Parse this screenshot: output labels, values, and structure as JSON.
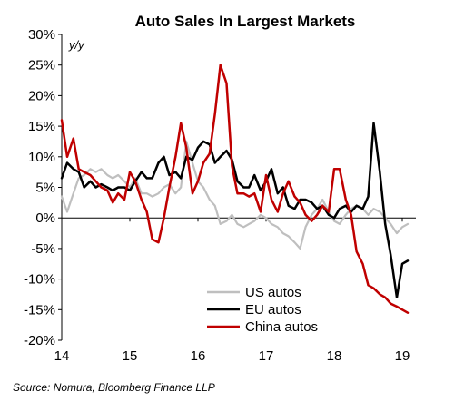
{
  "chart_data": {
    "type": "line",
    "title": "Auto Sales In Largest Markets",
    "unit_label": "y/y",
    "source": "Source: Nomura, Bloomberg Finance LLP",
    "ylim": [
      -20,
      30
    ],
    "y_ticks": [
      30,
      25,
      20,
      15,
      10,
      5,
      0,
      -5,
      -10,
      -15,
      -20
    ],
    "y_tick_labels": [
      "30%",
      "25%",
      "20%",
      "15%",
      "10%",
      "5%",
      "0%",
      "-5%",
      "-10%",
      "-15%",
      "-20%"
    ],
    "xlim": [
      2014,
      2019.2
    ],
    "x_ticks": [
      2014,
      2015,
      2016,
      2017,
      2018,
      2019
    ],
    "x_tick_labels": [
      "14",
      "15",
      "16",
      "17",
      "18",
      "19"
    ],
    "grid": false,
    "legend_position": "bottom-right",
    "series": [
      {
        "name": "US autos",
        "color": "#bfbfbf",
        "x": [
          2014.0,
          2014.08,
          2014.17,
          2014.25,
          2014.33,
          2014.42,
          2014.5,
          2014.58,
          2014.67,
          2014.75,
          2014.83,
          2014.92,
          2015.0,
          2015.08,
          2015.17,
          2015.25,
          2015.33,
          2015.42,
          2015.5,
          2015.58,
          2015.67,
          2015.75,
          2015.83,
          2015.92,
          2016.0,
          2016.08,
          2016.17,
          2016.25,
          2016.33,
          2016.42,
          2016.5,
          2016.58,
          2016.67,
          2016.75,
          2016.83,
          2016.92,
          2017.0,
          2017.08,
          2017.17,
          2017.25,
          2017.33,
          2017.42,
          2017.5,
          2017.58,
          2017.67,
          2017.75,
          2017.83,
          2017.92,
          2018.0,
          2018.08,
          2018.17,
          2018.25,
          2018.33,
          2018.42,
          2018.5,
          2018.58,
          2018.67,
          2018.75,
          2018.83,
          2018.92,
          2019.0,
          2019.08
        ],
        "values": [
          3.5,
          1,
          4,
          6.5,
          7,
          8,
          7.5,
          8,
          7,
          6.5,
          7,
          6,
          5,
          6.5,
          4,
          4,
          3.5,
          4,
          5,
          5.5,
          4,
          5,
          12.5,
          9,
          6,
          5,
          3,
          2,
          -1,
          -0.5,
          0.5,
          -1,
          -1.5,
          -1,
          -0.5,
          0.5,
          0,
          -1,
          -1.5,
          -2.5,
          -3,
          -4,
          -5,
          -1.5,
          0.5,
          1.5,
          3,
          1,
          -0.5,
          -1,
          0.5,
          1.5,
          2,
          1.5,
          0.5,
          1.5,
          1,
          0,
          -1,
          -2.5,
          -1.5,
          -1
        ]
      },
      {
        "name": "EU autos",
        "color": "#000000",
        "x": [
          2014.0,
          2014.08,
          2014.17,
          2014.25,
          2014.33,
          2014.42,
          2014.5,
          2014.58,
          2014.67,
          2014.75,
          2014.83,
          2014.92,
          2015.0,
          2015.08,
          2015.17,
          2015.25,
          2015.33,
          2015.42,
          2015.5,
          2015.58,
          2015.67,
          2015.75,
          2015.83,
          2015.92,
          2016.0,
          2016.08,
          2016.17,
          2016.25,
          2016.33,
          2016.42,
          2016.5,
          2016.58,
          2016.67,
          2016.75,
          2016.83,
          2016.92,
          2017.0,
          2017.08,
          2017.17,
          2017.25,
          2017.33,
          2017.42,
          2017.5,
          2017.58,
          2017.67,
          2017.75,
          2017.83,
          2017.92,
          2018.0,
          2018.08,
          2018.17,
          2018.25,
          2018.33,
          2018.42,
          2018.5,
          2018.58,
          2018.67,
          2018.75,
          2018.83,
          2018.92,
          2019.0,
          2019.08
        ],
        "values": [
          6.5,
          9,
          8,
          7.5,
          5,
          6,
          5,
          5.5,
          5,
          4.5,
          5,
          5,
          4.5,
          6,
          7.5,
          6.5,
          6.5,
          9,
          10,
          7,
          7.5,
          6.5,
          10,
          9.5,
          11.5,
          12.5,
          12,
          9,
          10,
          11,
          9.5,
          6,
          5,
          5,
          7,
          4.5,
          6,
          8,
          4,
          5,
          2,
          1.5,
          3,
          3,
          2.5,
          1.5,
          2,
          0.5,
          0,
          1.5,
          2,
          1,
          2,
          1.5,
          3.5,
          15.5,
          7.5,
          -1,
          -6,
          -13,
          -7.5,
          -7
        ]
      },
      {
        "name": "China autos",
        "color": "#c00000",
        "x": [
          2014.0,
          2014.08,
          2014.17,
          2014.25,
          2014.33,
          2014.42,
          2014.5,
          2014.58,
          2014.67,
          2014.75,
          2014.83,
          2014.92,
          2015.0,
          2015.08,
          2015.17,
          2015.25,
          2015.33,
          2015.42,
          2015.5,
          2015.58,
          2015.67,
          2015.75,
          2015.83,
          2015.92,
          2016.0,
          2016.08,
          2016.17,
          2016.25,
          2016.33,
          2016.42,
          2016.5,
          2016.58,
          2016.67,
          2016.75,
          2016.83,
          2016.92,
          2017.0,
          2017.08,
          2017.17,
          2017.25,
          2017.33,
          2017.42,
          2017.5,
          2017.58,
          2017.67,
          2017.75,
          2017.83,
          2017.92,
          2018.0,
          2018.08,
          2018.17,
          2018.25,
          2018.33,
          2018.42,
          2018.5,
          2018.58,
          2018.67,
          2018.75,
          2018.83,
          2018.92,
          2019.0,
          2019.08
        ],
        "values": [
          16,
          10,
          13,
          8,
          7.5,
          7,
          6,
          5,
          4.5,
          2.5,
          4,
          3,
          7.5,
          6,
          3,
          1,
          -3.5,
          -4,
          0,
          5,
          10,
          15.5,
          11.5,
          4,
          6,
          9,
          10.5,
          17,
          25,
          22,
          8.5,
          4,
          4,
          3.5,
          4,
          1,
          7,
          3,
          1,
          4,
          6,
          3.5,
          2.5,
          0.5,
          -0.5,
          0.5,
          2,
          1,
          8,
          8,
          3,
          0.5,
          -5.5,
          -7.5,
          -11,
          -11.5,
          -12.5,
          -13,
          -14,
          -14.5,
          -15,
          -15.5
        ]
      }
    ]
  }
}
